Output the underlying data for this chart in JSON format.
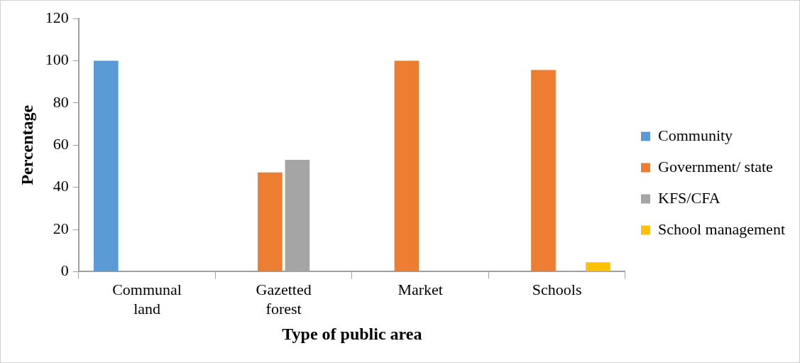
{
  "chart_data": {
    "type": "bar",
    "xlabel": "Type of public area",
    "ylabel": "Percentage",
    "categories": [
      "Communal land",
      "Gazetted forest",
      "Market",
      "Schools"
    ],
    "series": [
      {
        "name": "Community",
        "color": "#5b9bd5",
        "values": [
          100,
          null,
          null,
          null
        ]
      },
      {
        "name": "Government/ state",
        "color": "#ed7d31",
        "values": [
          null,
          47,
          100,
          95.6
        ]
      },
      {
        "name": "KFS/CFA",
        "color": "#a5a5a5",
        "values": [
          null,
          53,
          null,
          null
        ]
      },
      {
        "name": "School management",
        "color": "#ffc000",
        "values": [
          null,
          null,
          null,
          4.4
        ]
      }
    ],
    "ylim": [
      0,
      120
    ],
    "yticks": [
      0,
      20,
      40,
      60,
      80,
      100,
      120
    ],
    "grid": false,
    "legend": "right"
  }
}
